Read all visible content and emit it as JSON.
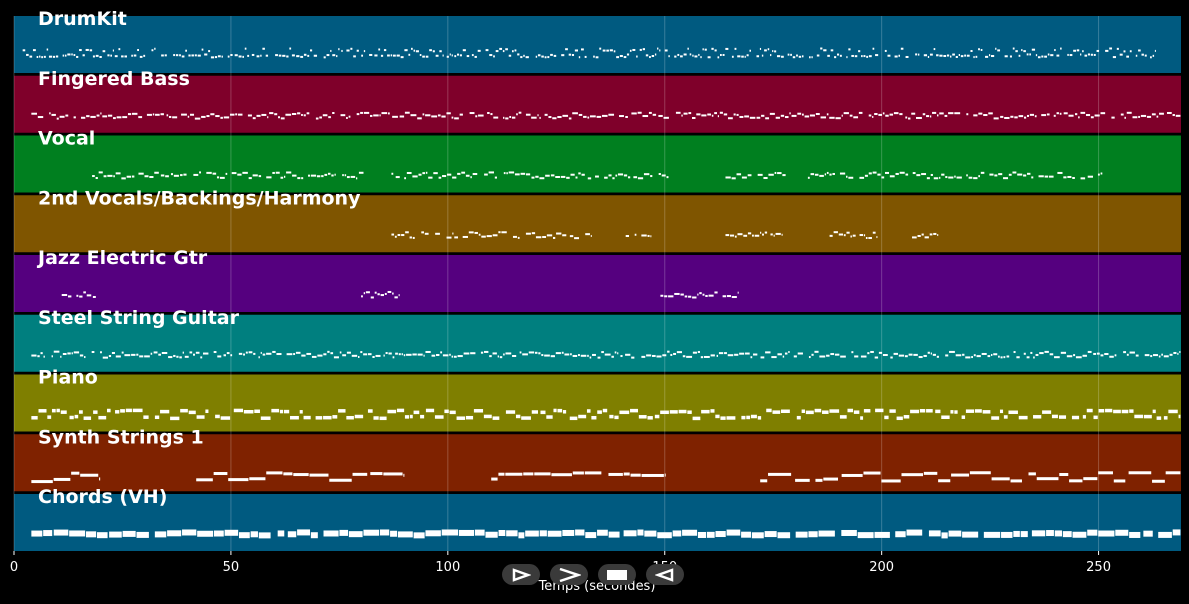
{
  "chart_data": {
    "type": "piano-roll",
    "xlabel": "Temps (secondes)",
    "xlim": [
      0,
      269
    ],
    "xticks": [
      0,
      50,
      100,
      150,
      200,
      250
    ],
    "grid": true,
    "tracks": [
      {
        "name": "DrumKit",
        "color": "#005a80",
        "segments": [
          [
            2,
            263
          ]
        ],
        "density": 1.0,
        "style": "drum"
      },
      {
        "name": "Fingered Bass",
        "color": "#7f002a",
        "segments": [
          [
            4,
            269
          ]
        ],
        "density": 0.95,
        "style": "line"
      },
      {
        "name": "Vocal",
        "color": "#007f1f",
        "segments": [
          [
            18,
            81
          ],
          [
            87,
            151
          ],
          [
            164,
            178
          ],
          [
            183,
            251
          ]
        ],
        "density": 0.7,
        "style": "sparse"
      },
      {
        "name": "2nd Vocals/Backings/Harmony",
        "color": "#7f5500",
        "segments": [
          [
            87,
            117
          ],
          [
            118,
            133
          ],
          [
            141,
            147
          ],
          [
            164,
            177
          ],
          [
            188,
            199
          ],
          [
            207,
            213
          ]
        ],
        "density": 0.7,
        "style": "sparse"
      },
      {
        "name": "Jazz Electric Gtr",
        "color": "#55007f",
        "segments": [
          [
            11,
            19
          ],
          [
            80,
            89
          ],
          [
            149,
            167
          ]
        ],
        "density": 0.8,
        "style": "sparse"
      },
      {
        "name": "Steel String Guitar",
        "color": "#007f7f",
        "segments": [
          [
            4,
            269
          ]
        ],
        "density": 1.0,
        "style": "line"
      },
      {
        "name": "Piano",
        "color": "#7f7f00",
        "segments": [
          [
            4,
            269
          ]
        ],
        "density": 1.0,
        "style": "thick"
      },
      {
        "name": "Synth Strings 1",
        "color": "#7f2200",
        "segments": [
          [
            4,
            20
          ],
          [
            42,
            90
          ],
          [
            110,
            150
          ],
          [
            172,
            269
          ]
        ],
        "density": 0.9,
        "style": "long"
      },
      {
        "name": "Chords (VH)",
        "color": "#005a80",
        "segments": [
          [
            4,
            269
          ]
        ],
        "density": 1.0,
        "style": "block"
      }
    ]
  },
  "controls": [
    "play-icon",
    "forward-icon",
    "stop-icon",
    "rewind-icon"
  ]
}
